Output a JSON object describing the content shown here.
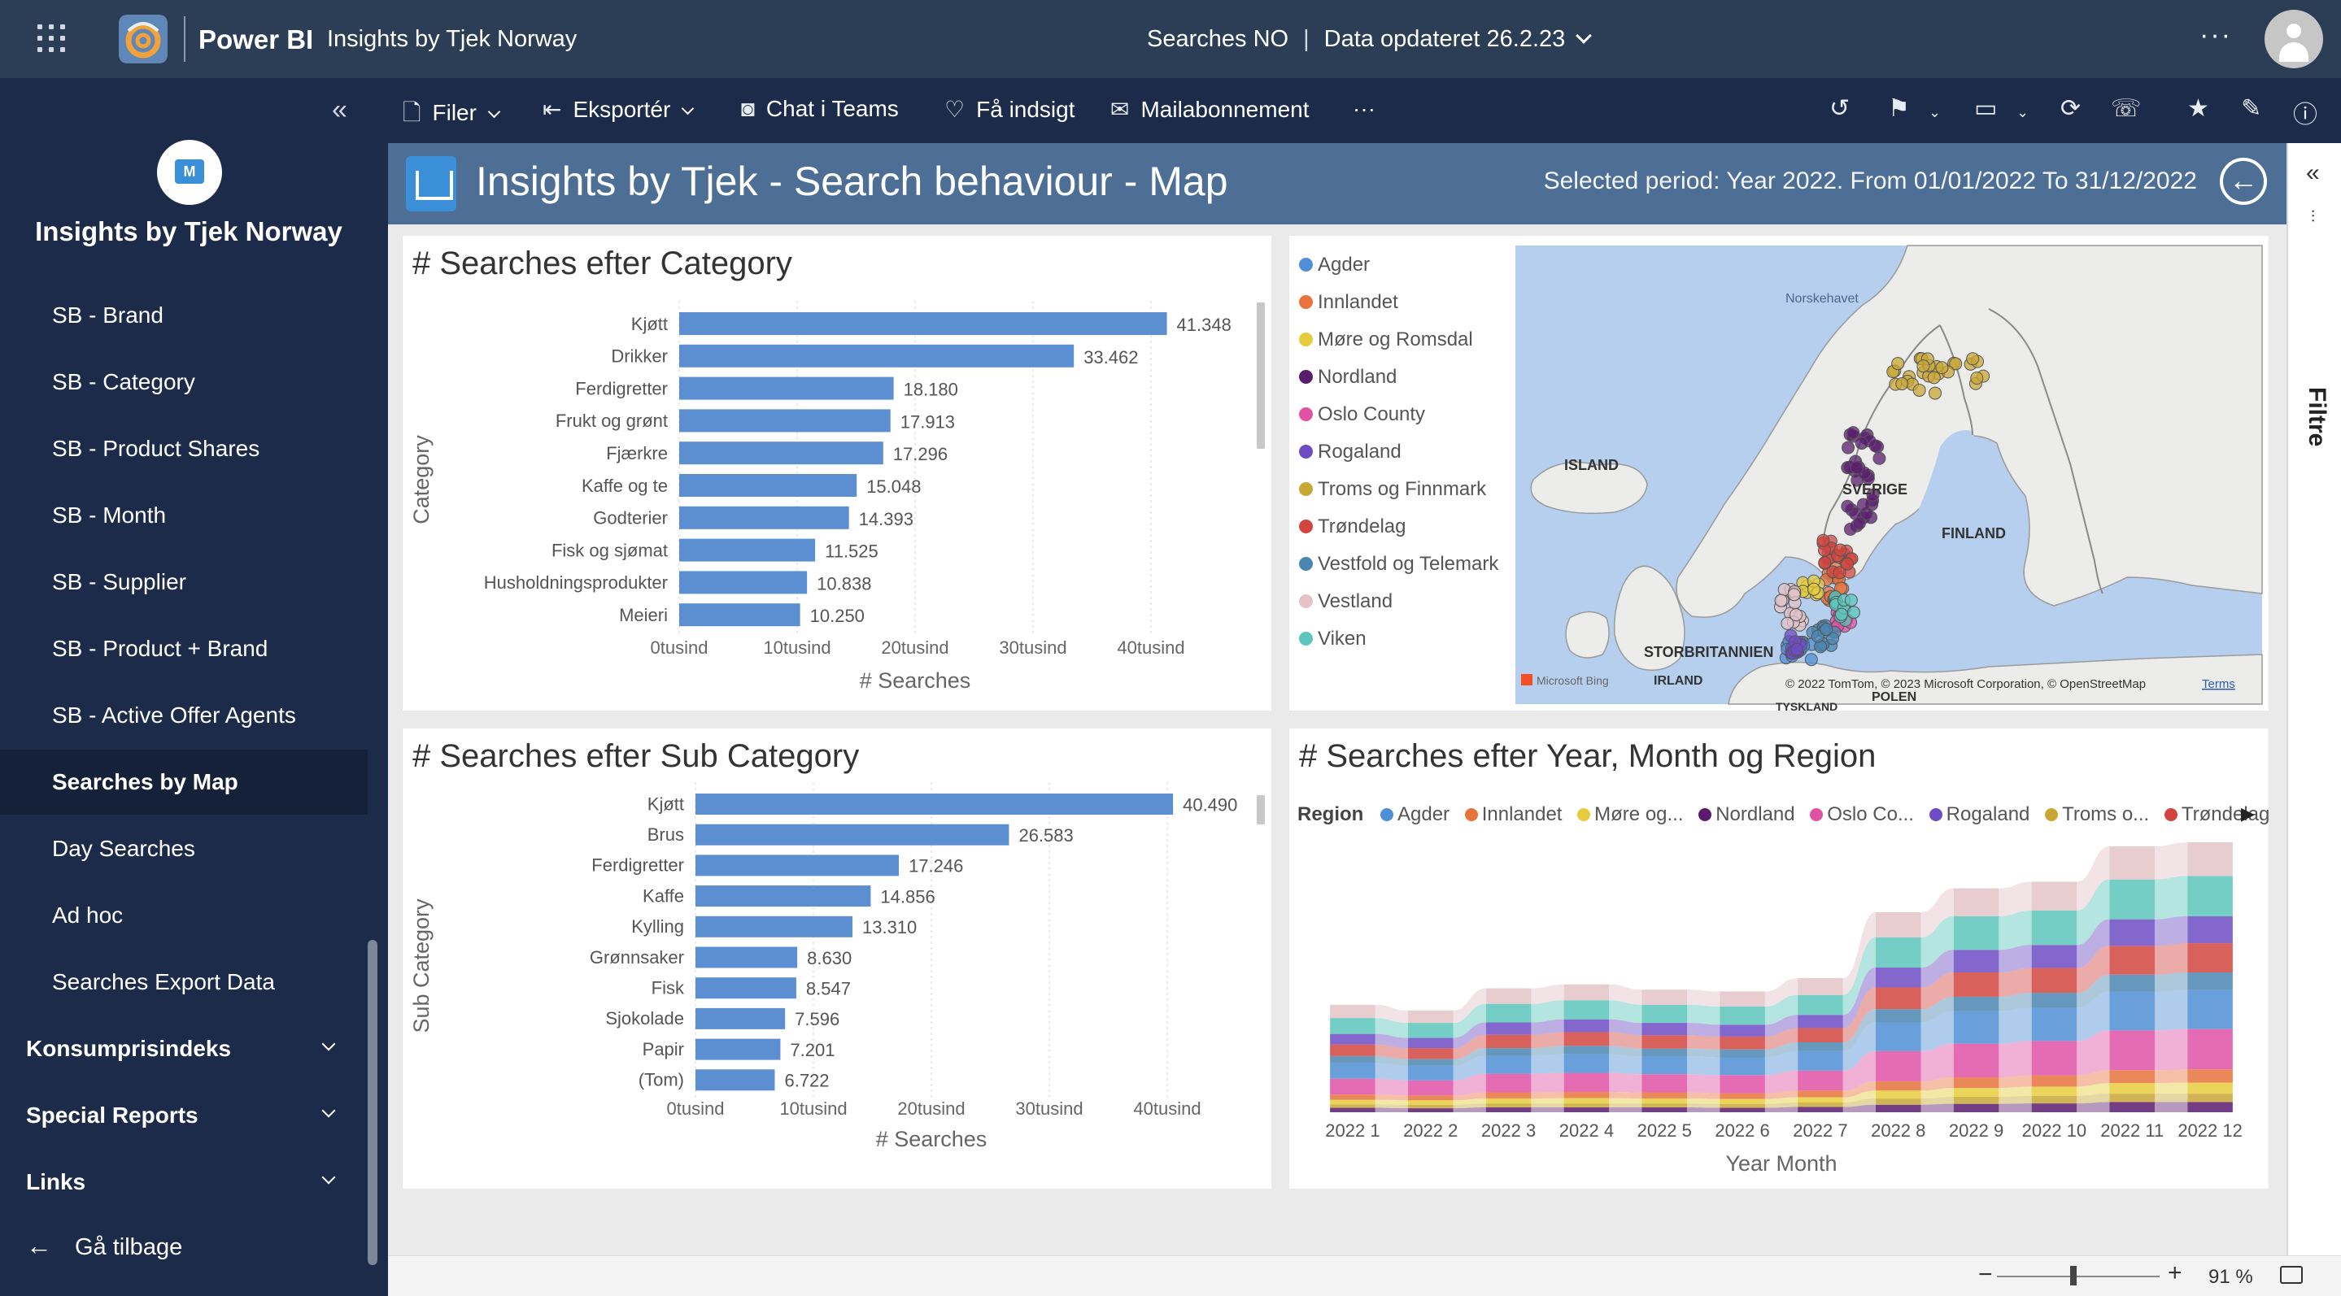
{
  "topbar": {
    "app_name": "Power BI",
    "report_name": "Insights by Tjek Norway",
    "dataset": "Searches NO",
    "separator": "|",
    "data_updated": "Data opdateret 26.2.23",
    "more": "···"
  },
  "sidebar": {
    "workspace_name": "Insights by Tjek Norway",
    "logo_glyph": "M",
    "collapse": "«",
    "items": [
      {
        "label": "SB - Brand",
        "active": false
      },
      {
        "label": "SB - Category",
        "active": false
      },
      {
        "label": "SB - Product Shares",
        "active": false
      },
      {
        "label": "SB - Month",
        "active": false
      },
      {
        "label": "SB - Supplier",
        "active": false
      },
      {
        "label": "SB - Product + Brand",
        "active": false
      },
      {
        "label": "SB - Active Offer Agents",
        "active": false
      },
      {
        "label": "Searches by Map",
        "active": true
      },
      {
        "label": "Day Searches",
        "active": false
      },
      {
        "label": "Ad hoc",
        "active": false
      },
      {
        "label": "Searches Export Data",
        "active": false
      }
    ],
    "sections": [
      {
        "label": "Konsumprisindeks"
      },
      {
        "label": "Special Reports"
      },
      {
        "label": "Links"
      }
    ],
    "back_label": "Gå tilbage",
    "back_arrow": "←"
  },
  "toolbar": {
    "file": "Filer",
    "export": "Eksportér",
    "teams": "Chat i Teams",
    "insights": "Få indsigt",
    "subscribe": "Mailabonnement",
    "more": "···"
  },
  "report": {
    "title": "Insights by Tjek - Search behaviour - Map",
    "period": "Selected period: Year 2022. From 01/01/2022 To 31/12/2022",
    "back_glyph": "←"
  },
  "panels": {
    "category_title": "# Searches efter Category",
    "subcategory_title": "# Searches efter Sub Category",
    "stream_title": "# Searches efter Year, Month og Region"
  },
  "map": {
    "legend": [
      {
        "label": "Agder",
        "color": "#4f8fd6"
      },
      {
        "label": "Innlandet",
        "color": "#e8733c"
      },
      {
        "label": "Møre og Romsdal",
        "color": "#e6cc3c"
      },
      {
        "label": "Nordland",
        "color": "#5a1c6e"
      },
      {
        "label": "Oslo County",
        "color": "#e052a4"
      },
      {
        "label": "Rogaland",
        "color": "#6d4cc4"
      },
      {
        "label": "Troms og Finnmark",
        "color": "#c9a735"
      },
      {
        "label": "Trøndelag",
        "color": "#d2453f"
      },
      {
        "label": "Vestfold og Telemark",
        "color": "#4a86b0"
      },
      {
        "label": "Vestland",
        "color": "#e3c3c8"
      },
      {
        "label": "Viken",
        "color": "#5cc6bc"
      }
    ],
    "labels": {
      "sea": "Norskehavet",
      "iceland": "ISLAND",
      "sweden": "SVERIGE",
      "finland": "FINLAND",
      "uk": "STORBRITANNIEN",
      "ireland": "IRLAND",
      "poland": "POLEN",
      "germany": "TYSKLAND",
      "bing": "Microsoft Bing",
      "copyright": "© 2022 TomTom, © 2023 Microsoft Corporation, © OpenStreetMap",
      "terms": "Terms"
    },
    "colors": {
      "water": "#b6cfee",
      "land": "#ececea",
      "border": "#8a8a8a"
    }
  },
  "chart_data": [
    {
      "type": "bar",
      "orientation": "horizontal",
      "title": "# Searches efter Category",
      "xlabel": "# Searches",
      "ylabel": "Category",
      "categories": [
        "Kjøtt",
        "Drikker",
        "Ferdigretter",
        "Frukt og grønt",
        "Fjærkre",
        "Kaffe og te",
        "Godterier",
        "Fisk og sjømat",
        "Husholdningsprodukter",
        "Meieri"
      ],
      "values": [
        41348,
        33462,
        18180,
        17913,
        17296,
        15048,
        14393,
        11525,
        10838,
        10250
      ],
      "data_labels": [
        "41.348",
        "33.462",
        "18.180",
        "17.913",
        "17.296",
        "15.048",
        "14.393",
        "11.525",
        "10.838",
        "10.250"
      ],
      "xlim": [
        0,
        40000
      ],
      "xticks": [
        0,
        10000,
        20000,
        30000,
        40000
      ],
      "xtick_labels": [
        "0tusind",
        "10tusind",
        "20tusind",
        "30tusind",
        "40tusind"
      ],
      "color": "#5b8fd1",
      "grid": true
    },
    {
      "type": "bar",
      "orientation": "horizontal",
      "title": "# Searches efter Sub Category",
      "xlabel": "# Searches",
      "ylabel": "Sub Category",
      "categories": [
        "Kjøtt",
        "Brus",
        "Ferdigretter",
        "Kaffe",
        "Kylling",
        "Grønnsaker",
        "Fisk",
        "Sjokolade",
        "Papir",
        "(Tom)"
      ],
      "values": [
        40490,
        26583,
        17246,
        14856,
        13310,
        8630,
        8547,
        7596,
        7201,
        6722
      ],
      "data_labels": [
        "40.490",
        "26.583",
        "17.246",
        "14.856",
        "13.310",
        "8.630",
        "8.547",
        "7.596",
        "7.201",
        "6.722"
      ],
      "xlim": [
        0,
        40000
      ],
      "xticks": [
        0,
        10000,
        20000,
        30000,
        40000
      ],
      "xtick_labels": [
        "0tusind",
        "10tusind",
        "20tusind",
        "30tusind",
        "40tusind"
      ],
      "color": "#5b8fd1",
      "grid": true
    },
    {
      "type": "area",
      "subtype": "ribbon",
      "title": "# Searches efter Year, Month og Region",
      "xlabel": "Year Month",
      "legend_title": "Region",
      "legend_placement": "top",
      "legend_entries": [
        "Agder",
        "Innlandet",
        "Møre og...",
        "Nordland",
        "Oslo Co...",
        "Rogaland",
        "Troms o...",
        "Trøndelag"
      ],
      "categories": [
        "2022 1",
        "2022 2",
        "2022 3",
        "2022 4",
        "2022 5",
        "2022 6",
        "2022 7",
        "2022 8",
        "2022 9",
        "2022 10",
        "2022 11",
        "2022 12"
      ],
      "series": [
        {
          "name": "Agder",
          "color": "#4f8fd6",
          "values": [
            3.5,
            3.3,
            4.0,
            4.2,
            4.0,
            4.0,
            4.4,
            6.5,
            7.3,
            7.5,
            8.7,
            8.8
          ]
        },
        {
          "name": "Innlandet",
          "color": "#e8733c",
          "values": [
            1.2,
            1.1,
            1.4,
            1.4,
            1.4,
            1.3,
            1.5,
            2.1,
            2.4,
            2.5,
            2.9,
            3.0
          ]
        },
        {
          "name": "Møre og Romsdal",
          "color": "#e6cc3c",
          "values": [
            1.0,
            1.0,
            1.1,
            1.2,
            1.1,
            1.1,
            1.2,
            1.8,
            2.0,
            2.1,
            2.4,
            2.5
          ]
        },
        {
          "name": "Nordland",
          "color": "#5a1c6e",
          "values": [
            1.0,
            0.9,
            1.1,
            1.1,
            1.1,
            1.0,
            1.2,
            1.7,
            1.9,
            2.0,
            2.3,
            2.3
          ]
        },
        {
          "name": "Oslo County",
          "color": "#e052a4",
          "values": [
            3.6,
            3.4,
            4.2,
            4.3,
            4.1,
            4.1,
            4.5,
            6.8,
            7.6,
            7.8,
            9.0,
            9.1
          ]
        },
        {
          "name": "Rogaland",
          "color": "#6d4cc4",
          "values": [
            2.4,
            2.3,
            2.8,
            2.9,
            2.8,
            2.7,
            3.0,
            4.5,
            5.1,
            5.2,
            6.0,
            6.1
          ]
        },
        {
          "name": "Troms og Finnmark",
          "color": "#c9a735",
          "values": [
            0.8,
            0.8,
            0.9,
            0.9,
            0.9,
            0.9,
            1.0,
            1.4,
            1.6,
            1.7,
            1.9,
            1.9
          ]
        },
        {
          "name": "Trøndelag",
          "color": "#d2453f",
          "values": [
            2.6,
            2.5,
            3.0,
            3.1,
            3.0,
            2.9,
            3.2,
            4.9,
            5.5,
            5.6,
            6.5,
            6.6
          ]
        },
        {
          "name": "Vestfold og Telemark",
          "color": "#4a86b0",
          "values": [
            1.6,
            1.5,
            1.8,
            1.9,
            1.8,
            1.8,
            2.0,
            3.0,
            3.3,
            3.4,
            3.9,
            4.0
          ]
        },
        {
          "name": "Vestland",
          "color": "#e3c3c8",
          "values": [
            3.0,
            2.8,
            3.5,
            3.6,
            3.4,
            3.4,
            3.8,
            5.7,
            6.3,
            6.5,
            7.5,
            7.6
          ]
        },
        {
          "name": "Viken",
          "color": "#5cc6bc",
          "values": [
            3.6,
            3.4,
            4.2,
            4.3,
            4.1,
            4.1,
            4.5,
            6.8,
            7.6,
            7.8,
            9.0,
            9.1
          ]
        }
      ]
    }
  ],
  "statusbar": {
    "minus": "−",
    "plus": "+",
    "zoom": "91 %"
  },
  "filters": {
    "label": "Filtre",
    "chevron": "«"
  }
}
